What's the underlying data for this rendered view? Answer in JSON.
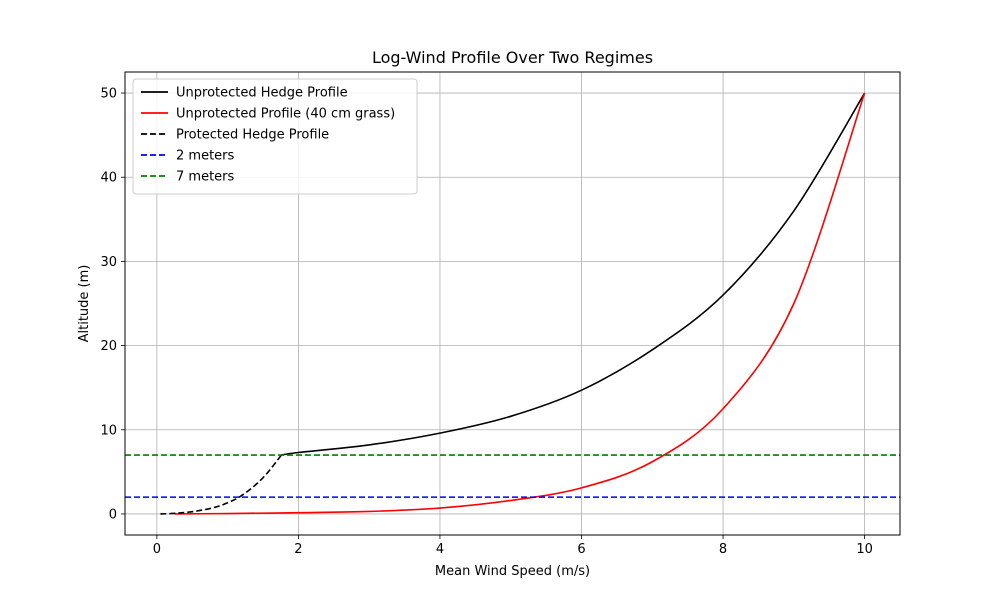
{
  "chart_data": {
    "type": "line",
    "title": "Log-Wind Profile Over Two Regimes",
    "xlabel": "Mean Wind Speed (m/s)",
    "ylabel": "Altitude (m)",
    "xlim": [
      -0.45,
      10.5
    ],
    "ylim": [
      -2.5,
      52.5
    ],
    "xticks": [
      0,
      2,
      4,
      6,
      8,
      10
    ],
    "yticks": [
      0,
      10,
      20,
      30,
      40,
      50
    ],
    "grid": true,
    "legend_position": "top-left",
    "series": [
      {
        "name": "Unprotected Hedge Profile",
        "color": "#000000",
        "style": "solid",
        "x": [
          1.76,
          2.0,
          3.0,
          4.0,
          5.0,
          6.0,
          7.0,
          8.0,
          9.0,
          10.0
        ],
        "y": [
          7.0,
          7.3,
          8.2,
          9.6,
          11.6,
          14.7,
          19.5,
          26.0,
          36.0,
          50.0
        ]
      },
      {
        "name": "Unprotected Profile (40 cm grass)",
        "color": "#ff0000",
        "style": "solid",
        "x": [
          0.25,
          1.0,
          2.0,
          3.0,
          4.0,
          5.0,
          6.0,
          7.0,
          8.0,
          9.0,
          10.0
        ],
        "y": [
          0.0,
          0.05,
          0.15,
          0.3,
          0.7,
          1.6,
          3.1,
          6.2,
          12.5,
          25.0,
          50.0
        ]
      },
      {
        "name": "Protected Hedge Profile",
        "color": "#000000",
        "style": "dashed",
        "x": [
          0.05,
          0.3,
          0.6,
          0.9,
          1.2,
          1.5,
          1.76
        ],
        "y": [
          0.0,
          0.1,
          0.4,
          1.0,
          2.2,
          4.3,
          7.0
        ]
      },
      {
        "name": "2 meters",
        "color": "#0000ff",
        "style": "dashed",
        "x": [
          -0.45,
          10.5
        ],
        "y": [
          2,
          2
        ]
      },
      {
        "name": "7 meters",
        "color": "#008000",
        "style": "dashed",
        "x": [
          -0.45,
          10.5
        ],
        "y": [
          7,
          7
        ]
      }
    ]
  }
}
